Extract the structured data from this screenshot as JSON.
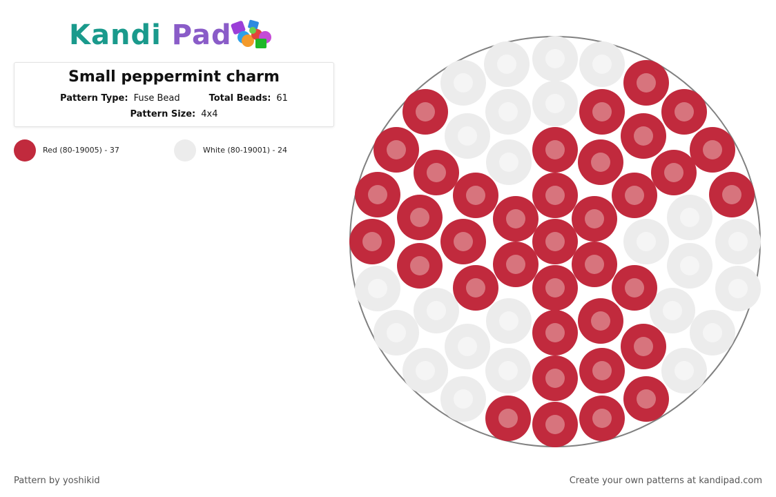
{
  "logo": {
    "text_part1": "Kandi",
    "text_part2": "Pad"
  },
  "pattern": {
    "title": "Small peppermint charm",
    "type_label": "Pattern Type:",
    "type_value": "Fuse Bead",
    "beads_label": "Total Beads:",
    "beads_value": "61",
    "size_label": "Pattern Size:",
    "size_value": "4x4"
  },
  "legend": [
    {
      "label": "Red (80-19005) - 37",
      "color": "#c12a3d"
    },
    {
      "label": "White (80-19001) - 24",
      "color": "#ececec"
    }
  ],
  "colors": {
    "red": "#c12a3d",
    "red_hole": "#d7747d",
    "white": "#ececec",
    "white_hole": "#f5f5f5",
    "ring": "#808080"
  },
  "footer": {
    "left": "Pattern by yoshikid",
    "right": "Create your own patterns at kandipad.com"
  }
}
